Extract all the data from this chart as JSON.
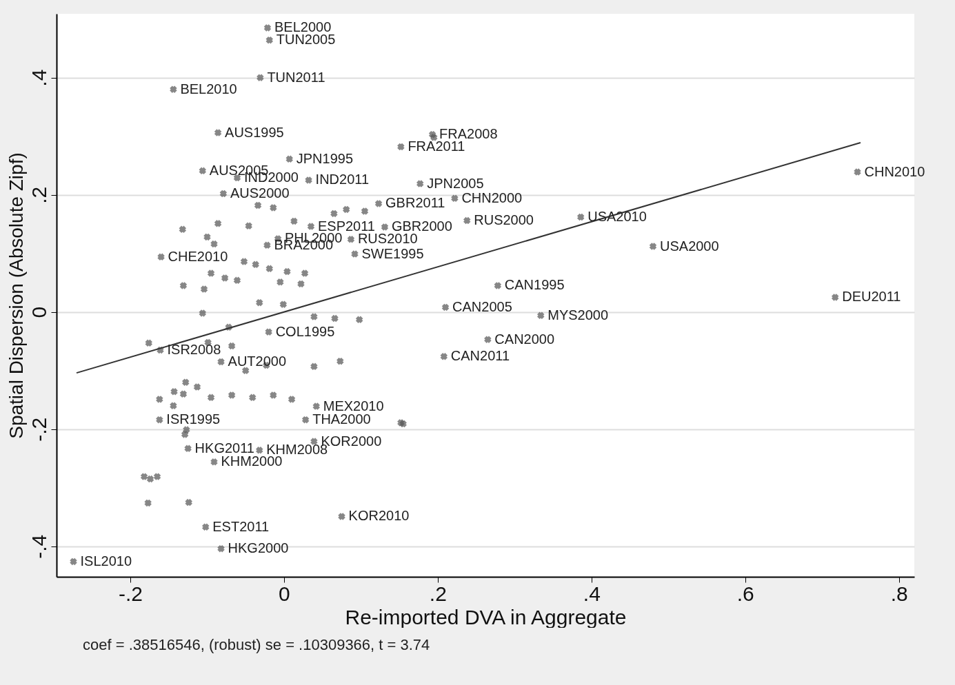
{
  "chart_data": {
    "type": "scatter",
    "xlabel": "Re-imported DVA in Aggregate",
    "ylabel": "Spatial Dispersion (Absolute Zipf)",
    "xlim": [
      -0.296,
      0.82
    ],
    "ylim": [
      -0.452,
      0.509
    ],
    "xticks": [
      {
        "value": -0.2,
        "label": "-.2"
      },
      0,
      {
        "value": 0.2,
        "label": ".2"
      },
      {
        "value": 0.4,
        "label": ".4"
      },
      {
        "value": 0.6,
        "label": ".6"
      },
      {
        "value": 0.8,
        "label": ".8"
      }
    ],
    "yticks": [
      {
        "value": -0.4,
        "label": "-.4"
      },
      {
        "value": -0.2,
        "label": "-.2"
      },
      0,
      {
        "value": 0.2,
        "label": ".2"
      },
      {
        "value": 0.4,
        "label": ".4"
      }
    ],
    "grid": "y",
    "marker": "cross",
    "series": [
      {
        "color": "#555555",
        "x": [
          -0.0215,
          -0.019,
          -0.031,
          -0.144,
          -0.086,
          0.007,
          -0.106,
          -0.061,
          0.032,
          -0.079,
          0.193,
          0.195,
          0.152,
          0.177,
          0.222,
          0.123,
          0.131,
          0.238,
          0.386,
          0.48,
          0.746,
          0.717,
          0.278,
          0.21,
          0.334,
          0.265,
          0.208,
          0.087,
          0.092,
          0.035,
          -0.008,
          -0.16,
          -0.022,
          -0.02,
          -0.161,
          -0.082,
          0.042,
          0.028,
          -0.162,
          -0.125,
          -0.032,
          0.039,
          -0.091,
          -0.102,
          -0.082,
          0.075,
          -0.274,
          -0.034,
          -0.014,
          -0.086,
          -0.046,
          0.013,
          0.065,
          0.081,
          0.105,
          -0.1,
          -0.132,
          -0.091,
          -0.052,
          -0.037,
          -0.019,
          0.004,
          0.027,
          -0.095,
          -0.077,
          -0.061,
          -0.005,
          0.022,
          -0.131,
          -0.104,
          -0.032,
          -0.001,
          0.039,
          0.066,
          0.098,
          -0.106,
          -0.072,
          -0.099,
          -0.068,
          -0.176,
          -0.023,
          0.039,
          0.073,
          -0.05,
          -0.128,
          -0.143,
          -0.113,
          -0.131,
          -0.095,
          -0.068,
          -0.041,
          -0.014,
          0.01,
          -0.162,
          -0.144,
          -0.127,
          -0.129,
          -0.182,
          -0.174,
          -0.165,
          -0.177,
          -0.124,
          0.152,
          0.155
        ],
        "values": [
          0.485,
          0.464,
          0.4,
          0.38,
          0.306,
          0.261,
          0.241,
          0.229,
          0.225,
          0.202,
          0.303,
          0.298,
          0.282,
          0.219,
          0.194,
          0.185,
          0.145,
          0.156,
          0.162,
          0.112,
          0.239,
          0.025,
          0.045,
          0.008,
          -0.006,
          -0.047,
          -0.076,
          0.124,
          0.099,
          0.146,
          0.125,
          0.094,
          0.114,
          -0.034,
          -0.065,
          -0.085,
          -0.161,
          -0.184,
          -0.184,
          -0.233,
          -0.236,
          -0.221,
          -0.256,
          -0.367,
          -0.404,
          -0.349,
          -0.426,
          0.182,
          0.178,
          0.151,
          0.147,
          0.155,
          0.168,
          0.175,
          0.172,
          0.128,
          0.141,
          0.116,
          0.086,
          0.081,
          0.074,
          0.069,
          0.066,
          0.066,
          0.058,
          0.054,
          0.051,
          0.048,
          0.045,
          0.039,
          0.016,
          0.013,
          -0.008,
          -0.011,
          -0.013,
          -0.002,
          -0.026,
          -0.052,
          -0.058,
          -0.053,
          -0.091,
          -0.093,
          -0.084,
          -0.1,
          -0.12,
          -0.136,
          -0.128,
          -0.14,
          -0.146,
          -0.142,
          -0.146,
          -0.142,
          -0.149,
          -0.149,
          -0.16,
          -0.201,
          -0.209,
          -0.281,
          -0.285,
          -0.281,
          -0.326,
          -0.325,
          -0.189,
          -0.191
        ]
      },
      {
        "type": "line",
        "marker": "none",
        "color": "#333333",
        "x": [
          -0.27,
          0.75
        ],
        "values": [
          -0.104,
          0.289
        ]
      }
    ],
    "annotations": [
      {
        "text": "BEL2000",
        "x": -0.0215,
        "y": 0.485
      },
      {
        "text": "TUN2005",
        "x": -0.019,
        "y": 0.464
      },
      {
        "text": "TUN2011",
        "x": -0.031,
        "y": 0.4
      },
      {
        "text": "BEL2010",
        "x": -0.144,
        "y": 0.38
      },
      {
        "text": "AUS1995",
        "x": -0.086,
        "y": 0.306
      },
      {
        "text": "JPN1995",
        "x": 0.007,
        "y": 0.261
      },
      {
        "text": "AUS2005",
        "x": -0.106,
        "y": 0.241
      },
      {
        "text": "IND2000",
        "x": -0.061,
        "y": 0.229
      },
      {
        "text": "IND2011",
        "x": 0.032,
        "y": 0.225
      },
      {
        "text": "AUS2000",
        "x": -0.079,
        "y": 0.202
      },
      {
        "text": "FRA2008",
        "x": 0.193,
        "y": 0.303
      },
      {
        "text": "FRA2011",
        "x": 0.152,
        "y": 0.282
      },
      {
        "text": "JPN2005",
        "x": 0.177,
        "y": 0.219
      },
      {
        "text": "CHN2000",
        "x": 0.222,
        "y": 0.194
      },
      {
        "text": "GBR2011",
        "x": 0.123,
        "y": 0.185
      },
      {
        "text": "GBR2000",
        "x": 0.131,
        "y": 0.145
      },
      {
        "text": "RUS2000",
        "x": 0.238,
        "y": 0.156
      },
      {
        "text": "USA2010",
        "x": 0.386,
        "y": 0.162
      },
      {
        "text": "USA2000",
        "x": 0.48,
        "y": 0.112
      },
      {
        "text": "CHN2010",
        "x": 0.746,
        "y": 0.239
      },
      {
        "text": "DEU2011",
        "x": 0.717,
        "y": 0.025
      },
      {
        "text": "CAN1995",
        "x": 0.278,
        "y": 0.045
      },
      {
        "text": "CAN2005",
        "x": 0.21,
        "y": 0.008
      },
      {
        "text": "MYS2000",
        "x": 0.334,
        "y": -0.006
      },
      {
        "text": "CAN2000",
        "x": 0.265,
        "y": -0.047
      },
      {
        "text": "CAN2011",
        "x": 0.208,
        "y": -0.076
      },
      {
        "text": "RUS2010",
        "x": 0.087,
        "y": 0.124
      },
      {
        "text": "SWE1995",
        "x": 0.092,
        "y": 0.099
      },
      {
        "text": "ESP2011",
        "x": 0.035,
        "y": 0.146
      },
      {
        "text": "PHL2000",
        "x": -0.008,
        "y": 0.125
      },
      {
        "text": "CHE2010",
        "x": -0.16,
        "y": 0.094
      },
      {
        "text": "BRA2000",
        "x": -0.022,
        "y": 0.114
      },
      {
        "text": "COL1995",
        "x": -0.02,
        "y": -0.034
      },
      {
        "text": "ISR2008",
        "x": -0.161,
        "y": -0.065
      },
      {
        "text": "AUT2000",
        "x": -0.082,
        "y": -0.085
      },
      {
        "text": "MEX2010",
        "x": 0.042,
        "y": -0.161
      },
      {
        "text": "THA2000",
        "x": 0.028,
        "y": -0.184
      },
      {
        "text": "ISR1995",
        "x": -0.162,
        "y": -0.184
      },
      {
        "text": "HKG2011",
        "x": -0.125,
        "y": -0.233
      },
      {
        "text": "KHM2008",
        "x": -0.032,
        "y": -0.236
      },
      {
        "text": "KOR2000",
        "x": 0.039,
        "y": -0.221
      },
      {
        "text": "KHM2000",
        "x": -0.091,
        "y": -0.256
      },
      {
        "text": "EST2011",
        "x": -0.102,
        "y": -0.367
      },
      {
        "text": "HKG2000",
        "x": -0.082,
        "y": -0.404
      },
      {
        "text": "KOR2010",
        "x": 0.075,
        "y": -0.349
      },
      {
        "text": "ISL2010",
        "x": -0.274,
        "y": -0.426
      },
      "coef = .38516546, (robust) se = .10309366, t = 3.74"
    ]
  }
}
